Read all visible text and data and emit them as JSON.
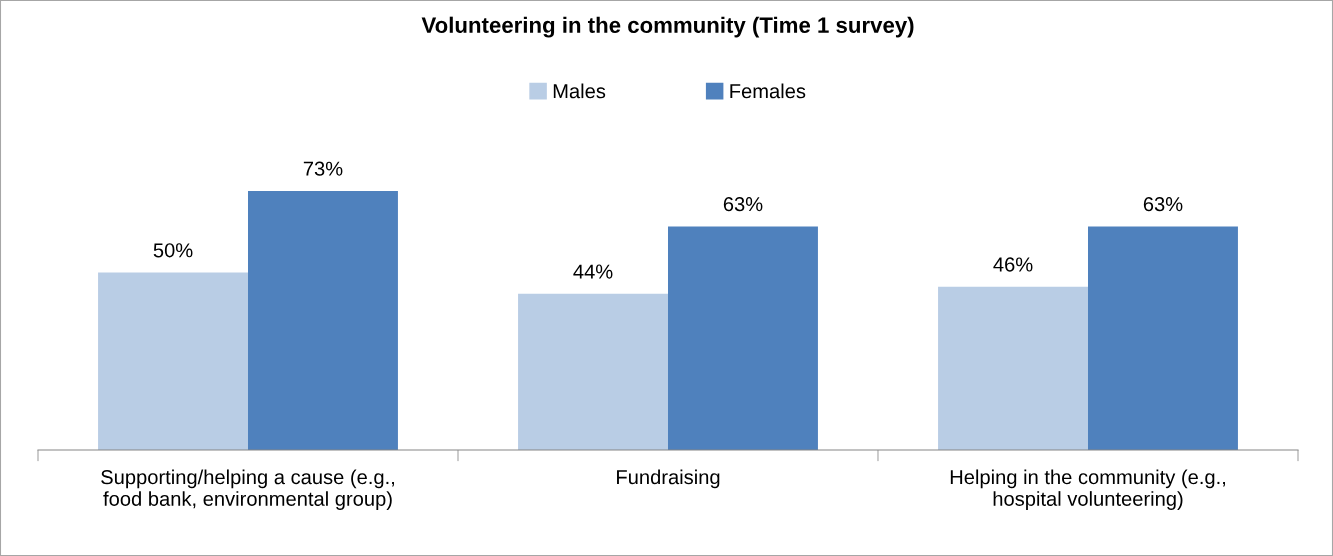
{
  "chart_data": {
    "type": "bar",
    "title": "Volunteering in the community (Time 1 survey)",
    "categories": [
      "Supporting/helping a cause (e.g.,\nfood bank, environmental group)",
      "Fundraising",
      "Helping in the community (e.g.,\nhospital volunteering)"
    ],
    "series": [
      {
        "name": "Males",
        "color": "#b9cde5",
        "values": [
          50,
          44,
          46
        ],
        "value_labels": [
          "50%",
          "44%",
          "46%"
        ]
      },
      {
        "name": "Females",
        "color": "#4f81bd",
        "values": [
          73,
          63,
          63
        ],
        "value_labels": [
          "73%",
          "63%",
          "63%"
        ]
      }
    ],
    "legend": "top",
    "grid": false
  }
}
